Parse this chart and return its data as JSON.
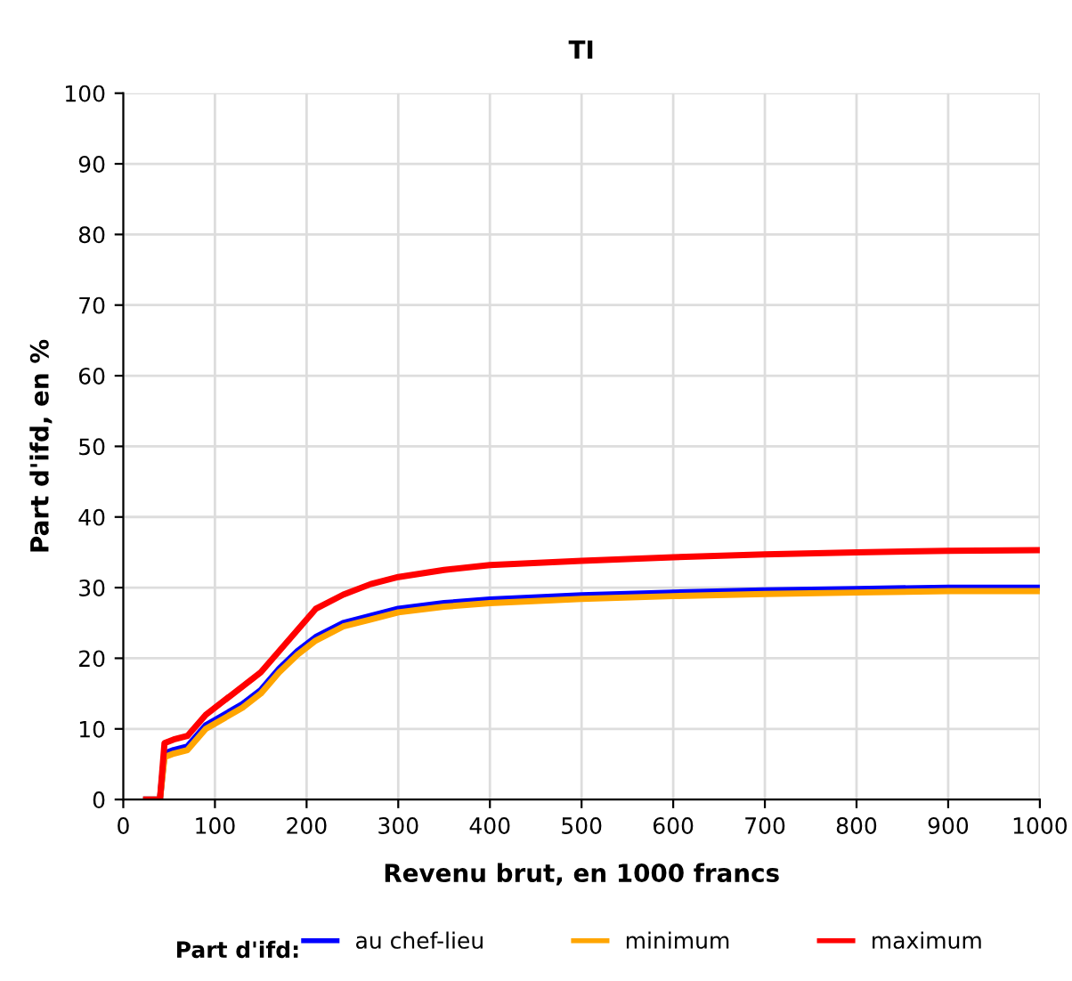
{
  "chart_data": {
    "type": "line",
    "title": "TI",
    "xlabel": "Revenu brut, en 1000 francs",
    "ylabel": "Part d'ifd, en %",
    "legend_title": "Part d'ifd:",
    "legend": "bottom",
    "grid": true,
    "marker": "none",
    "line_style": "solid",
    "xlim": [
      0,
      1000
    ],
    "xticks": [
      0,
      100,
      200,
      300,
      400,
      500,
      600,
      700,
      800,
      900,
      1000
    ],
    "ylim": [
      0,
      100
    ],
    "yticks": [
      0,
      10,
      20,
      30,
      40,
      50,
      60,
      70,
      80,
      90,
      100
    ],
    "x": [
      25,
      40,
      45,
      55,
      70,
      90,
      110,
      130,
      150,
      170,
      190,
      210,
      240,
      270,
      300,
      350,
      400,
      500,
      600,
      700,
      800,
      900,
      1000
    ],
    "series": [
      {
        "name": "au chef-lieu",
        "color": "#0000ff",
        "values": [
          0,
          0,
          6.5,
          7,
          7.5,
          10.5,
          12,
          13.5,
          15.5,
          18.5,
          21,
          23,
          25,
          26,
          27,
          27.8,
          28.3,
          28.9,
          29.3,
          29.6,
          29.8,
          30,
          30
        ]
      },
      {
        "name": "minimum",
        "color": "#ffa500",
        "values": [
          0,
          0,
          6,
          6.5,
          7,
          10,
          11.5,
          13,
          15,
          18,
          20.5,
          22.5,
          24.5,
          25.5,
          26.5,
          27.3,
          27.8,
          28.4,
          28.8,
          29.1,
          29.3,
          29.5,
          29.5
        ]
      },
      {
        "name": "maximum",
        "color": "#ff0000",
        "values": [
          0,
          0,
          8,
          8.5,
          9,
          12,
          14,
          16,
          18,
          21,
          24,
          27,
          29,
          30.5,
          31.5,
          32.5,
          33.2,
          33.8,
          34.3,
          34.7,
          35,
          35.2,
          35.3
        ]
      }
    ]
  }
}
